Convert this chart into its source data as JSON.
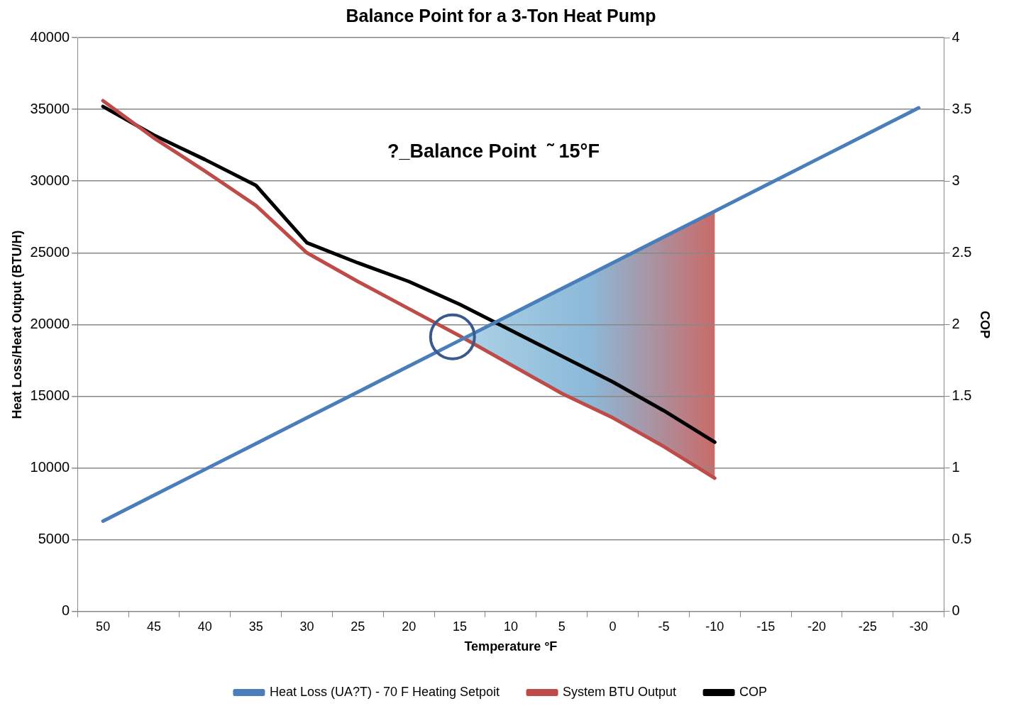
{
  "chart_data": {
    "type": "line",
    "title": "Balance Point for a 3-Ton Heat Pump",
    "xlabel": "Temperature °F",
    "ylabel": "Heat Loss/Heat Output (BTU/H)",
    "y2label": "COP",
    "categories": [
      "50",
      "45",
      "40",
      "35",
      "30",
      "25",
      "20",
      "15",
      "10",
      "5",
      "0",
      "-5",
      "-10",
      "-15",
      "-20",
      "-25",
      "-30"
    ],
    "series": [
      {
        "name": "Heat Loss (UA?T) - 70 F Heating Setpoit",
        "color": "#4a7ebb",
        "values": [
          6300,
          8100,
          9900,
          11700,
          13500,
          15300,
          17100,
          18900,
          20700,
          22500,
          24300,
          26100,
          27900,
          29700,
          31500,
          33300,
          35100
        ]
      },
      {
        "name": "System BTU Output",
        "color": "#be4b48",
        "values": [
          35600,
          33000,
          30700,
          28300,
          25000,
          23000,
          21100,
          19200,
          17200,
          15200,
          13500,
          11500,
          9300,
          null,
          null,
          null,
          null
        ]
      },
      {
        "name": "COP",
        "color": "#000000",
        "axis": "y2",
        "values": [
          3.52,
          3.32,
          3.15,
          2.97,
          2.57,
          2.43,
          2.3,
          2.14,
          1.96,
          1.78,
          1.6,
          1.4,
          1.18,
          null,
          null,
          null,
          null
        ]
      }
    ],
    "ylim": [
      0,
      40000
    ],
    "yticks": [
      0,
      5000,
      10000,
      15000,
      20000,
      25000,
      30000,
      35000,
      40000
    ],
    "y2lim": [
      0,
      4
    ],
    "y2ticks": [
      0,
      0.5,
      1,
      1.5,
      2,
      2.5,
      3,
      3.5,
      4
    ],
    "annotations": [
      "?_Balance Point  ˜ 15°F"
    ],
    "grid": "y",
    "legend": "bottom",
    "marker": "none",
    "line_style": "solid"
  }
}
